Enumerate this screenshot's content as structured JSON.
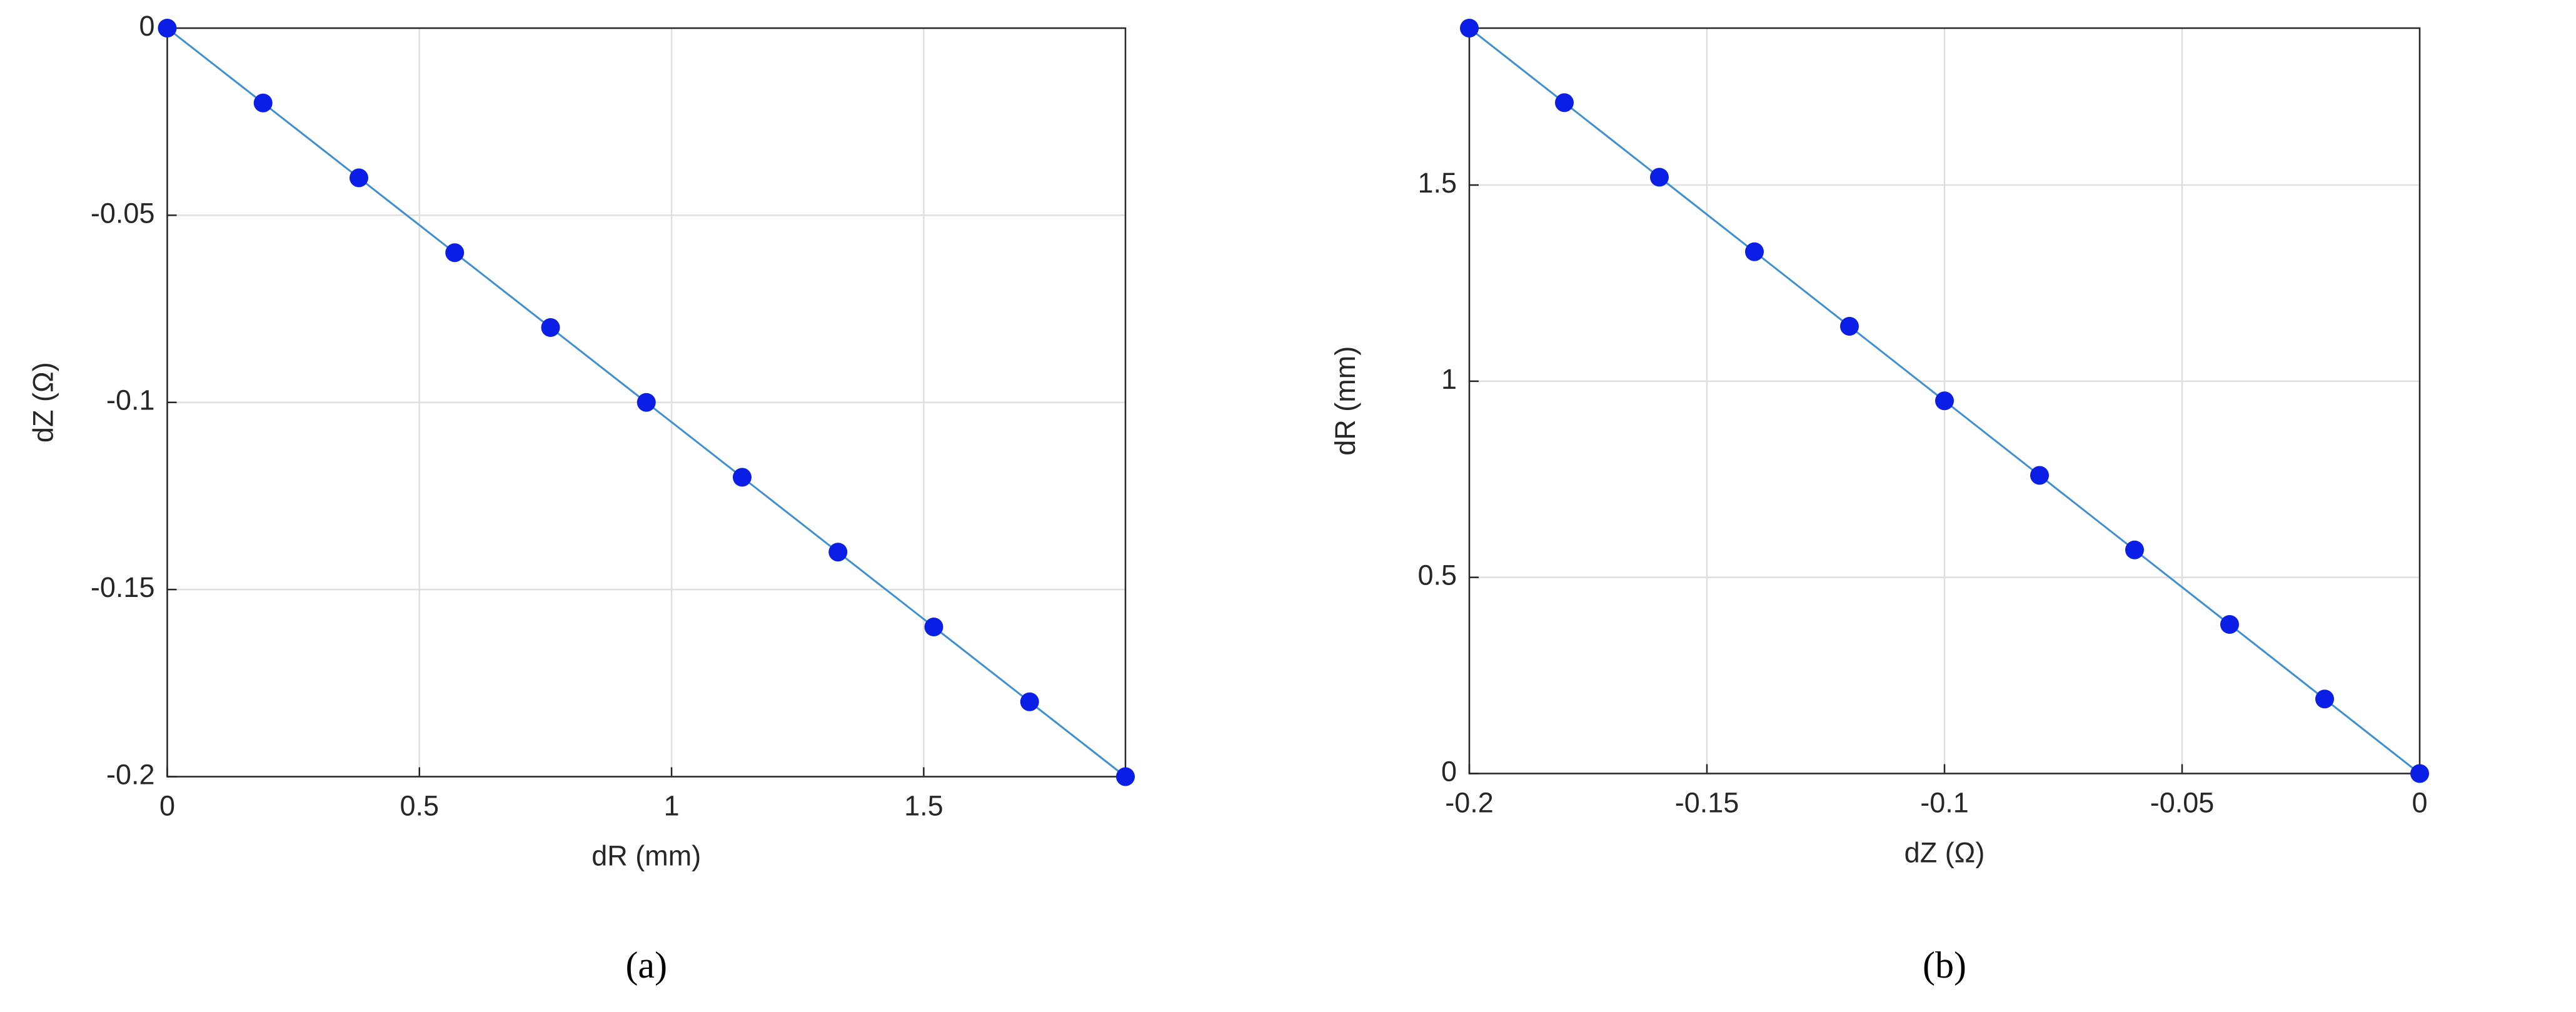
{
  "chart_data": [
    {
      "type": "line",
      "caption": "(a)",
      "x_label": "dR (mm)",
      "y_label": "dZ (Ω)",
      "x": [
        0,
        0.19,
        0.38,
        0.57,
        0.76,
        0.95,
        1.14,
        1.33,
        1.52,
        1.71,
        1.9
      ],
      "values": [
        0,
        -0.02,
        -0.04,
        -0.06,
        -0.08,
        -0.1,
        -0.12,
        -0.14,
        -0.16,
        -0.18,
        -0.2
      ],
      "line_color": "#3d8fd1",
      "marker_color": "#0a1ee6",
      "xlim": [
        0,
        1.9
      ],
      "xticks": [
        0,
        0.5,
        1,
        1.5
      ],
      "ylim": [
        -0.2,
        0
      ],
      "yticks": [
        -0.2,
        -0.15,
        -0.1,
        -0.05,
        0
      ],
      "grid": true
    },
    {
      "type": "line",
      "caption": "(b)",
      "x_label": "dZ (Ω)",
      "y_label": "dR (mm)",
      "x": [
        -0.2,
        -0.18,
        -0.16,
        -0.14,
        -0.12,
        -0.1,
        -0.08,
        -0.06,
        -0.04,
        -0.02,
        0
      ],
      "values": [
        1.9,
        1.71,
        1.52,
        1.33,
        1.14,
        0.95,
        0.76,
        0.57,
        0.38,
        0.19,
        0
      ],
      "line_color": "#3d8fd1",
      "marker_color": "#0a1ee6",
      "xlim": [
        -0.2,
        0
      ],
      "xticks": [
        -0.2,
        -0.15,
        -0.1,
        -0.05,
        0
      ],
      "ylim": [
        0,
        1.9
      ],
      "yticks": [
        0,
        0.5,
        1,
        1.5
      ],
      "grid": true
    }
  ]
}
